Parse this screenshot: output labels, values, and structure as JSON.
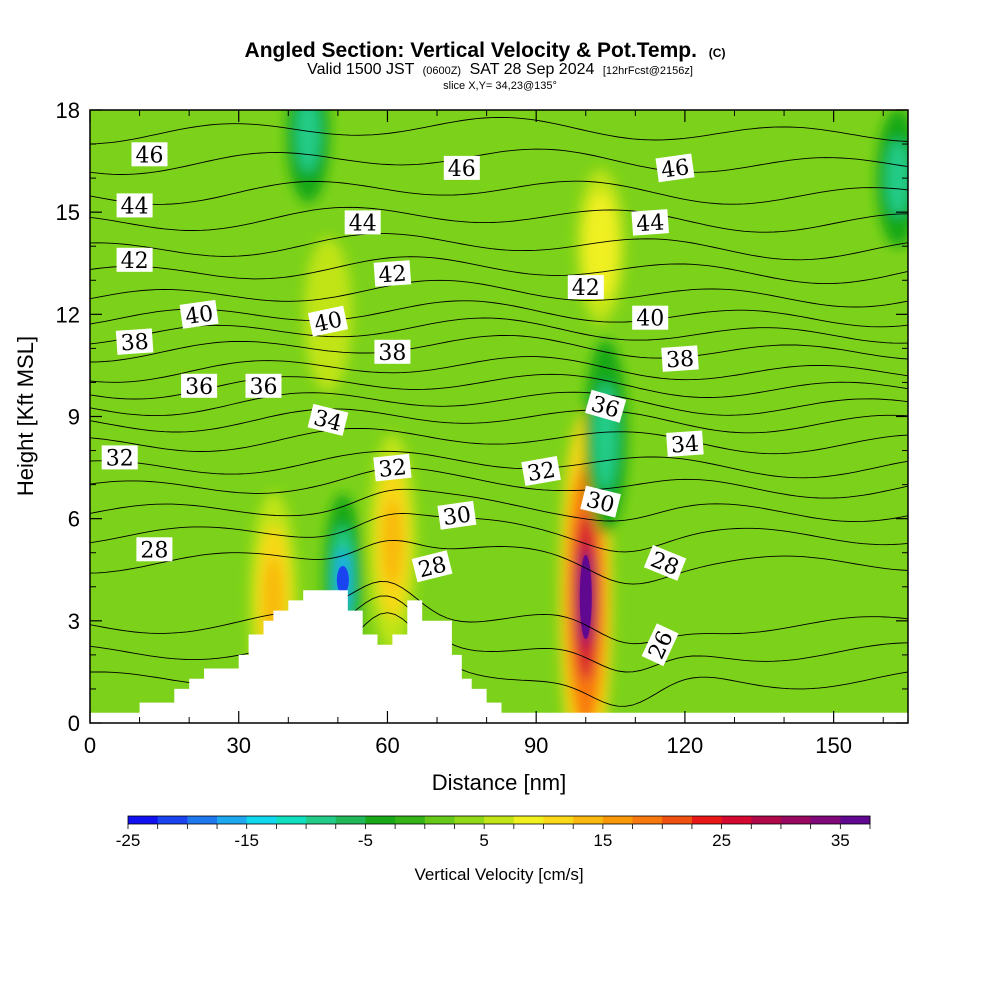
{
  "chart_data": {
    "type": "heatmap",
    "title": "Angled Section: Vertical Velocity & Pot.Temp.",
    "title_suffix": "(C)",
    "subtitle_main": "Valid 1500 JST",
    "subtitle_utc": "(0600Z)",
    "subtitle_date": "SAT 28 Sep 2024",
    "subtitle_fcst": "[12hrFcst@2156z]",
    "slice_label": "slice X,Y= 34,23@135°",
    "xlabel": "Distance [nm]",
    "ylabel": "Height [Kft MSL]",
    "xlim": [
      0,
      165
    ],
    "ylim": [
      0,
      18
    ],
    "x_ticks": [
      0,
      30,
      60,
      90,
      120,
      150
    ],
    "y_ticks": [
      0,
      3,
      6,
      9,
      12,
      15,
      18
    ],
    "colorbar": {
      "label": "Vertical Velocity [cm/s]",
      "min": -25,
      "max": 37.5,
      "step": 2.5,
      "tick_values": [
        -25,
        -15,
        -5,
        5,
        15,
        25,
        35
      ],
      "colors": [
        "#1010f0",
        "#1a44f0",
        "#1f78ee",
        "#1ea8f0",
        "#12d8ee",
        "#10e0c0",
        "#22cc88",
        "#20b858",
        "#18a818",
        "#34b418",
        "#66c818",
        "#90d818",
        "#c0e418",
        "#f0f020",
        "#f8d818",
        "#f8b810",
        "#f89808",
        "#f87810",
        "#f05010",
        "#e81818",
        "#d40830",
        "#b00848",
        "#980860",
        "#800878",
        "#600890"
      ]
    },
    "theta_contour_labels": [
      {
        "value": "46",
        "x": 12,
        "y": 16.7
      },
      {
        "value": "46",
        "x": 75,
        "y": 16.3
      },
      {
        "value": "46",
        "x": 118,
        "y": 16.3
      },
      {
        "value": "44",
        "x": 9,
        "y": 15.2
      },
      {
        "value": "44",
        "x": 55,
        "y": 14.7
      },
      {
        "value": "44",
        "x": 113,
        "y": 14.7
      },
      {
        "value": "42",
        "x": 9,
        "y": 13.6
      },
      {
        "value": "42",
        "x": 61,
        "y": 13.2
      },
      {
        "value": "42",
        "x": 100,
        "y": 12.8
      },
      {
        "value": "40",
        "x": 22,
        "y": 12.0
      },
      {
        "value": "40",
        "x": 48,
        "y": 11.8
      },
      {
        "value": "40",
        "x": 113,
        "y": 11.9
      },
      {
        "value": "38",
        "x": 9,
        "y": 11.2
      },
      {
        "value": "38",
        "x": 61,
        "y": 10.9
      },
      {
        "value": "38",
        "x": 119,
        "y": 10.7
      },
      {
        "value": "36",
        "x": 22,
        "y": 9.9
      },
      {
        "value": "36",
        "x": 35,
        "y": 9.9
      },
      {
        "value": "36",
        "x": 104,
        "y": 9.3
      },
      {
        "value": "34",
        "x": 48,
        "y": 8.9
      },
      {
        "value": "34",
        "x": 120,
        "y": 8.2
      },
      {
        "value": "32",
        "x": 6,
        "y": 7.8
      },
      {
        "value": "32",
        "x": 61,
        "y": 7.5
      },
      {
        "value": "32",
        "x": 91,
        "y": 7.4
      },
      {
        "value": "30",
        "x": 74,
        "y": 6.1
      },
      {
        "value": "30",
        "x": 103,
        "y": 6.5
      },
      {
        "value": "28",
        "x": 13,
        "y": 5.1
      },
      {
        "value": "28",
        "x": 69,
        "y": 4.6
      },
      {
        "value": "28",
        "x": 116,
        "y": 4.7
      },
      {
        "value": "26",
        "x": 115,
        "y": 2.3
      }
    ],
    "theta_contour_labels_rotation": [
      0,
      0,
      -8,
      0,
      0,
      -4,
      0,
      -4,
      0,
      -8,
      -12,
      0,
      -4,
      0,
      -4,
      0,
      0,
      16,
      14,
      -4,
      0,
      -6,
      -10,
      -8,
      14,
      0,
      -14,
      22,
      -65
    ],
    "terrain_profile": {
      "x": [
        0,
        10,
        10,
        17,
        17,
        20,
        20,
        23,
        23,
        30,
        30,
        32,
        32,
        35,
        35,
        37,
        37,
        40,
        40,
        43,
        43,
        52,
        52,
        55,
        55,
        58,
        58,
        61,
        61,
        64,
        64,
        67,
        67,
        73,
        73,
        75,
        75,
        77,
        77,
        80,
        80,
        83,
        83,
        86,
        86,
        89,
        89,
        165
      ],
      "y": [
        0.3,
        0.3,
        0.6,
        0.6,
        1.0,
        1.0,
        1.3,
        1.3,
        1.6,
        1.6,
        2.0,
        2.0,
        2.6,
        2.6,
        3.0,
        3.0,
        3.3,
        3.3,
        3.6,
        3.6,
        3.9,
        3.9,
        3.3,
        3.3,
        2.6,
        2.6,
        2.3,
        2.3,
        2.6,
        2.6,
        3.6,
        3.6,
        3.0,
        3.0,
        2.0,
        2.0,
        1.3,
        1.3,
        1.0,
        1.0,
        0.6,
        0.6,
        0.3,
        0.3,
        0.3,
        0.3,
        0.3,
        0.3
      ]
    },
    "velocity_features": [
      {
        "kind": "updraft-core",
        "x": 100,
        "y": 3.7,
        "value": 37
      },
      {
        "kind": "updraft",
        "x": 61,
        "y": 5.3,
        "value": 18
      },
      {
        "kind": "updraft",
        "x": 37,
        "y": 3.6,
        "value": 14
      },
      {
        "kind": "updraft",
        "x": 103,
        "y": 14,
        "value": 8
      },
      {
        "kind": "updraft",
        "x": 48,
        "y": 12,
        "value": 7
      },
      {
        "kind": "downdraft-core",
        "x": 51,
        "y": 4.2,
        "value": -22
      },
      {
        "kind": "downdraft",
        "x": 104,
        "y": 8.4,
        "value": -13
      },
      {
        "kind": "downdraft",
        "x": 44,
        "y": 17.3,
        "value": -10
      },
      {
        "kind": "downdraft",
        "x": 163,
        "y": 16,
        "value": -11
      }
    ]
  }
}
